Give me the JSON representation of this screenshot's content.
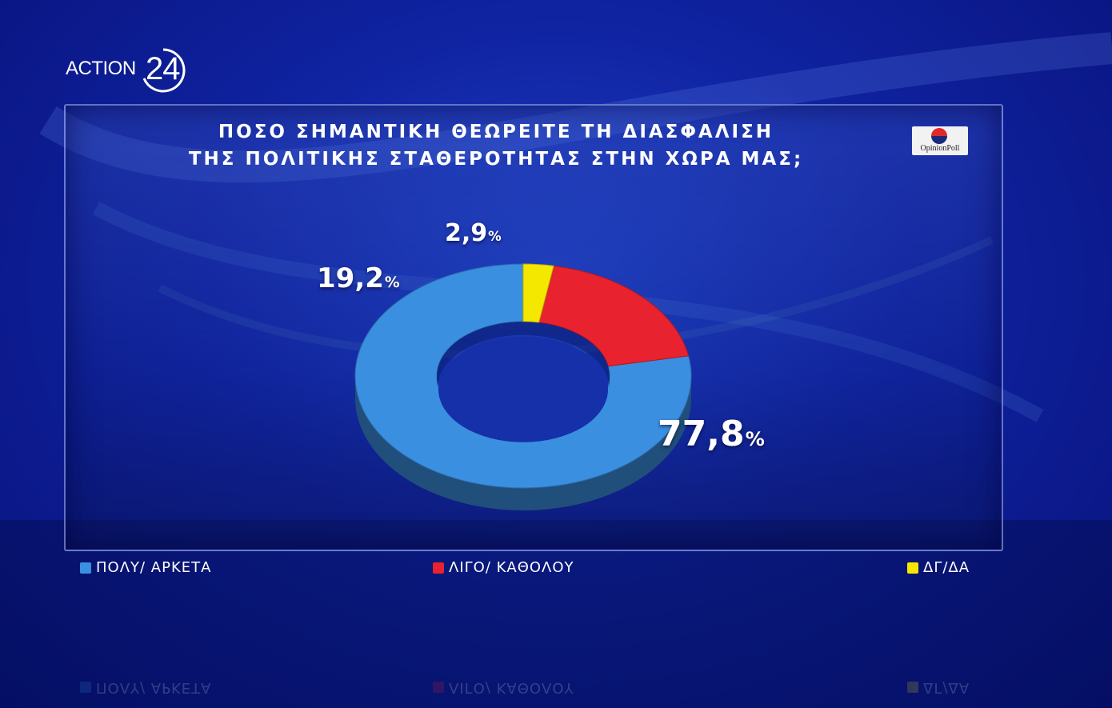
{
  "brand": {
    "logo_text": "ACTION",
    "logo_number": "24"
  },
  "badge": {
    "text": "OpinionPoll"
  },
  "title_line1": "ΠΟΣΟ ΣΗΜΑΝΤΙΚΗ ΘΕΩΡΕΙΤΕ ΤΗ ΔΙΑΣΦΑΛΙΣΗ",
  "title_line2": "ΤΗΣ ΠΟΛΙΤΙΚΗΣ ΣΤΑΘΕΡΟΤΗΤΑΣ ΣΤΗΝ ΧΩΡΑ ΜΑΣ;",
  "chart_data": {
    "type": "pie",
    "title": "ΠΟΣΟ ΣΗΜΑΝΤΙΚΗ ΘΕΩΡΕΙΤΕ ΤΗ ΔΙΑΣΦΑΛΙΣΗ ΤΗΣ ΠΟΛΙΤΙΚΗΣ ΣΤΑΘΕΡΟΤΗΤΑΣ ΣΤΗΝ ΧΩΡΑ ΜΑΣ;",
    "style": "donut",
    "legend_position": "bottom",
    "slices": [
      {
        "label": "ΠΟΛΥ/ ΑΡΚΕΤΑ",
        "value": 77.8,
        "value_text": "77,8",
        "color": "#3a8fe0"
      },
      {
        "label": "ΛΙΓΟ/ ΚΑΘΟΛΟΥ",
        "value": 19.2,
        "value_text": "19,2",
        "color": "#e8222e"
      },
      {
        "label": "ΔΓ/ΔΑ",
        "value": 2.9,
        "value_text": "2,9",
        "color": "#f5e800"
      }
    ],
    "unit": "%"
  }
}
